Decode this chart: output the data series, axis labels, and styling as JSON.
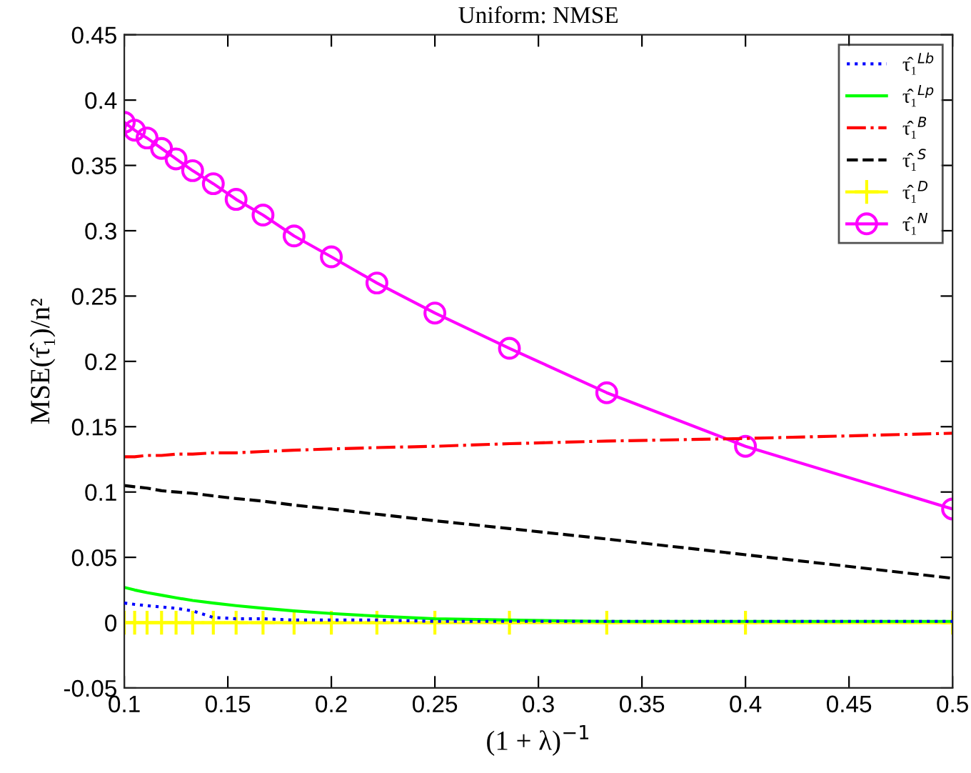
{
  "chart_data": {
    "type": "line",
    "title": "Uniform: NMSE",
    "xlabel": "(1 + λ)$^{−1}$",
    "ylabel": "MSE(τ̂₁)/n²",
    "x": [
      0.1,
      0.105,
      0.111,
      0.118,
      0.125,
      0.133,
      0.143,
      0.154,
      0.167,
      0.182,
      0.2,
      0.222,
      0.25,
      0.286,
      0.333,
      0.4,
      0.5
    ],
    "series": [
      {
        "name": "τ̂₁$^{Lb}$",
        "color": "#0000ff",
        "line_style": "dotted",
        "marker": "none",
        "values": [
          0.015,
          0.014,
          0.013,
          0.012,
          0.011,
          0.009,
          0.004,
          0.003,
          0.003,
          0.002,
          0.002,
          0.002,
          0.001,
          0.001,
          0.001,
          0.001,
          0.001
        ]
      },
      {
        "name": "τ̂₁$^{Lp}$",
        "color": "#00ff00",
        "line_style": "solid",
        "marker": "none",
        "values": [
          0.027,
          0.025,
          0.023,
          0.021,
          0.019,
          0.017,
          0.015,
          0.013,
          0.011,
          0.009,
          0.007,
          0.005,
          0.003,
          0.002,
          0.001,
          0.001,
          0.001
        ]
      },
      {
        "name": "τ̂₁$^{B}$",
        "color": "#ff0000",
        "line_style": "dashdot",
        "marker": "none",
        "values": [
          0.127,
          0.127,
          0.128,
          0.128,
          0.129,
          0.129,
          0.13,
          0.13,
          0.131,
          0.132,
          0.133,
          0.134,
          0.135,
          0.137,
          0.139,
          0.141,
          0.145
        ]
      },
      {
        "name": "τ̂₁$^{S}$",
        "color": "#000000",
        "line_style": "dashed",
        "marker": "none",
        "values": [
          0.105,
          0.104,
          0.103,
          0.101,
          0.1,
          0.099,
          0.097,
          0.095,
          0.093,
          0.09,
          0.087,
          0.083,
          0.078,
          0.072,
          0.064,
          0.052,
          0.034
        ]
      },
      {
        "name": "τ̂₁$^{D}$",
        "color": "#ffff00",
        "line_style": "solid",
        "marker": "cross",
        "values": [
          0,
          0,
          0,
          0,
          0,
          0,
          0,
          0,
          0,
          0,
          0,
          0,
          0,
          0,
          0,
          0,
          0
        ]
      },
      {
        "name": "τ̂₁$^{N}$",
        "color": "#ff00ff",
        "line_style": "solid",
        "marker": "circle",
        "values": [
          0.383,
          0.377,
          0.371,
          0.363,
          0.355,
          0.346,
          0.336,
          0.324,
          0.312,
          0.296,
          0.28,
          0.26,
          0.237,
          0.21,
          0.176,
          0.135,
          0.087
        ]
      }
    ],
    "xlim": [
      0.1,
      0.5
    ],
    "xticks": [
      0.1,
      0.15,
      0.2,
      0.25,
      0.3,
      0.35,
      0.4,
      0.45,
      0.5
    ],
    "ylim": [
      -0.05,
      0.45
    ],
    "yticks": [
      -0.05,
      0,
      0.05,
      0.1,
      0.15,
      0.2,
      0.25,
      0.3,
      0.35,
      0.4,
      0.45
    ],
    "legend": "top right",
    "grid": false
  }
}
